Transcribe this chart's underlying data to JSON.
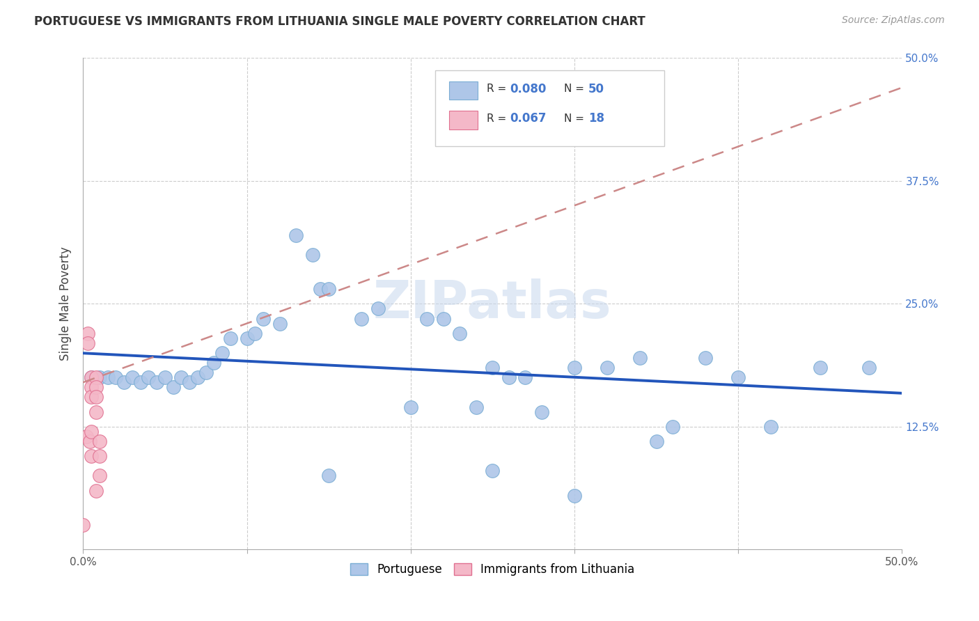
{
  "title": "PORTUGUESE VS IMMIGRANTS FROM LITHUANIA SINGLE MALE POVERTY CORRELATION CHART",
  "source": "Source: ZipAtlas.com",
  "ylabel": "Single Male Poverty",
  "watermark": "ZIPatlas",
  "xlim": [
    0.0,
    0.5
  ],
  "ylim": [
    0.0,
    0.5
  ],
  "portuguese_color": "#aec6e8",
  "portuguese_edge": "#7aadd4",
  "lithuania_color": "#f4b8c8",
  "lithuania_edge": "#e07090",
  "trend_portuguese_color": "#2255bb",
  "trend_lithuania_color": "#cc8888",
  "portuguese_x": [
    0.005,
    0.01,
    0.015,
    0.02,
    0.025,
    0.03,
    0.035,
    0.04,
    0.045,
    0.05,
    0.055,
    0.06,
    0.065,
    0.07,
    0.075,
    0.08,
    0.085,
    0.09,
    0.1,
    0.105,
    0.11,
    0.12,
    0.13,
    0.14,
    0.145,
    0.15,
    0.17,
    0.18,
    0.2,
    0.21,
    0.22,
    0.23,
    0.24,
    0.25,
    0.26,
    0.27,
    0.28,
    0.3,
    0.32,
    0.34,
    0.35,
    0.36,
    0.38,
    0.4,
    0.42,
    0.45,
    0.48,
    0.15,
    0.25,
    0.3
  ],
  "portuguese_y": [
    0.175,
    0.175,
    0.175,
    0.175,
    0.17,
    0.175,
    0.17,
    0.175,
    0.17,
    0.175,
    0.165,
    0.175,
    0.17,
    0.175,
    0.18,
    0.19,
    0.2,
    0.215,
    0.215,
    0.22,
    0.235,
    0.23,
    0.32,
    0.3,
    0.265,
    0.265,
    0.235,
    0.245,
    0.145,
    0.235,
    0.235,
    0.22,
    0.145,
    0.185,
    0.175,
    0.175,
    0.14,
    0.185,
    0.185,
    0.195,
    0.11,
    0.125,
    0.195,
    0.175,
    0.125,
    0.185,
    0.185,
    0.075,
    0.08,
    0.055
  ],
  "lithuania_x": [
    0.0,
    0.002,
    0.003,
    0.003,
    0.004,
    0.005,
    0.005,
    0.005,
    0.005,
    0.005,
    0.008,
    0.008,
    0.008,
    0.008,
    0.008,
    0.01,
    0.01,
    0.01
  ],
  "lithuania_y": [
    0.025,
    0.115,
    0.22,
    0.21,
    0.11,
    0.175,
    0.165,
    0.155,
    0.12,
    0.095,
    0.175,
    0.165,
    0.155,
    0.14,
    0.06,
    0.11,
    0.095,
    0.075
  ]
}
